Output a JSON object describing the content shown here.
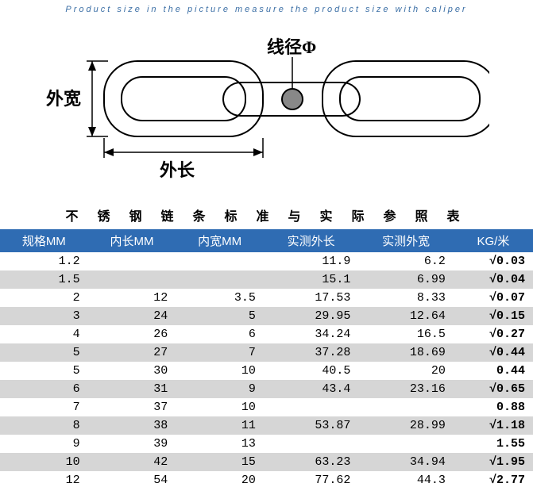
{
  "subtitle": "Product size  in the picture measure the product size with caliper",
  "diagram": {
    "label_outer_width": "外宽",
    "label_outer_length": "外长",
    "label_wire_dia": "线径Φ",
    "stroke": "#000000",
    "fill_bg": "#ffffff"
  },
  "table_title": "不 锈 钢 链 条 标 准 与 实 际 参 照 表",
  "header_bg": "#2f6cb3",
  "header_fg": "#ffffff",
  "alt_row_bg": "#d6d6d6",
  "columns": [
    "规格MM",
    "内长MM",
    "内宽MM",
    "实测外长",
    "实测外宽",
    "KG/米"
  ],
  "rows": [
    {
      "spec": "1.2",
      "inL": "",
      "inW": "",
      "outL": "11.9",
      "outW": "6.2",
      "kg": "√0.03",
      "alt": false
    },
    {
      "spec": "1.5",
      "inL": "",
      "inW": "",
      "outL": "15.1",
      "outW": "6.99",
      "kg": "√0.04",
      "alt": true
    },
    {
      "spec": "2",
      "inL": "12",
      "inW": "3.5",
      "outL": "17.53",
      "outW": "8.33",
      "kg": "√0.07",
      "alt": false
    },
    {
      "spec": "3",
      "inL": "24",
      "inW": "5",
      "outL": "29.95",
      "outW": "12.64",
      "kg": "√0.15",
      "alt": true
    },
    {
      "spec": "4",
      "inL": "26",
      "inW": "6",
      "outL": "34.24",
      "outW": "16.5",
      "kg": "√0.27",
      "alt": false
    },
    {
      "spec": "5",
      "inL": "27",
      "inW": "7",
      "outL": "37.28",
      "outW": "18.69",
      "kg": "√0.44",
      "alt": true
    },
    {
      "spec": "5",
      "inL": "30",
      "inW": "10",
      "outL": "40.5",
      "outW": "20",
      "kg": "0.44",
      "alt": false
    },
    {
      "spec": "6",
      "inL": "31",
      "inW": "9",
      "outL": "43.4",
      "outW": "23.16",
      "kg": "√0.65",
      "alt": true
    },
    {
      "spec": "7",
      "inL": "37",
      "inW": "10",
      "outL": "",
      "outW": "",
      "kg": "0.88",
      "alt": false
    },
    {
      "spec": "8",
      "inL": "38",
      "inW": "11",
      "outL": "53.87",
      "outW": "28.99",
      "kg": "√1.18",
      "alt": true
    },
    {
      "spec": "9",
      "inL": "39",
      "inW": "13",
      "outL": "",
      "outW": "",
      "kg": "1.55",
      "alt": false
    },
    {
      "spec": "10",
      "inL": "42",
      "inW": "15",
      "outL": "63.23",
      "outW": "34.94",
      "kg": "√1.95",
      "alt": true
    },
    {
      "spec": "12",
      "inL": "54",
      "inW": "20",
      "outL": "77.62",
      "outW": "44.3",
      "kg": "√2.77",
      "alt": false
    }
  ]
}
